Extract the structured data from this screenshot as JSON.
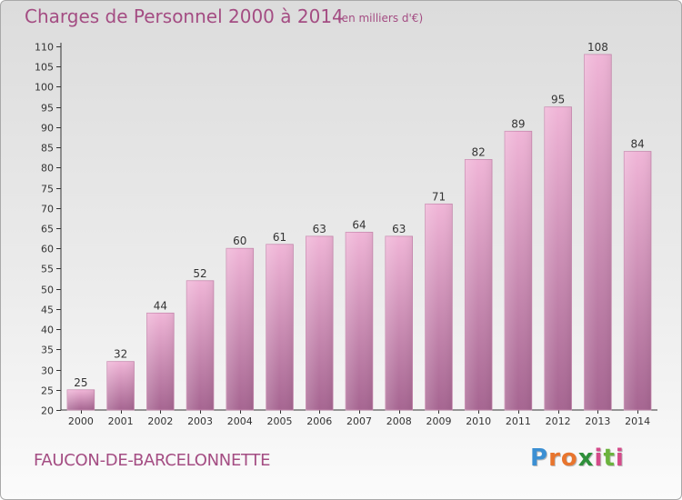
{
  "title": "Charges de Personnel 2000 à 2014",
  "subtitle": "(en milliers d'€)",
  "commune": "FAUCON-DE-BARCELONNETTE",
  "logo": {
    "letters": [
      "P",
      "r",
      "o",
      "x",
      "i",
      "t",
      "i"
    ],
    "colors": [
      "#3b8fd3",
      "#e8752e",
      "#e8752e",
      "#2e8f3a",
      "#d44b8a",
      "#6bb33d",
      "#d44b8a"
    ]
  },
  "colors": {
    "bar_light": "#f0b5d7",
    "bar_dark": "#a66591",
    "text": "#a44d83"
  },
  "chart_data": {
    "type": "bar",
    "title": "Charges de Personnel 2000 à 2014",
    "subtitle": "(en milliers d'€)",
    "categories": [
      "2000",
      "2001",
      "2002",
      "2003",
      "2004",
      "2005",
      "2006",
      "2007",
      "2008",
      "2009",
      "2010",
      "2011",
      "2012",
      "2013",
      "2014"
    ],
    "values": [
      25,
      32,
      44,
      52,
      60,
      61,
      63,
      64,
      63,
      71,
      82,
      89,
      95,
      108,
      84
    ],
    "ylim": [
      20,
      110
    ],
    "yticks": [
      20,
      25,
      30,
      35,
      40,
      45,
      50,
      55,
      60,
      65,
      70,
      75,
      80,
      85,
      90,
      95,
      100,
      105,
      110
    ],
    "grid": false,
    "data_labels": true
  }
}
